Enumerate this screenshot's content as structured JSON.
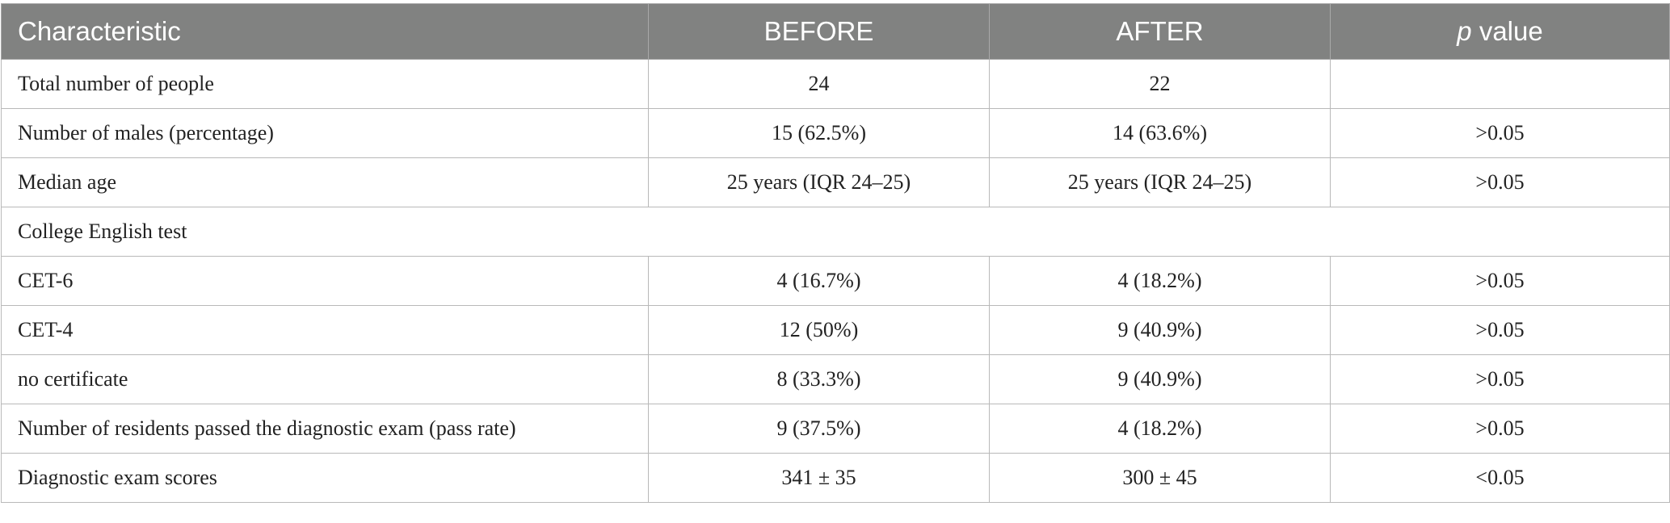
{
  "table": {
    "header": [
      "Characteristic",
      "BEFORE",
      "AFTER",
      {
        "italic": "p",
        "text": "value"
      }
    ],
    "rows": [
      [
        "Total number of people",
        "24",
        "22"
      ],
      [
        "Number of males (percentage)",
        "15 (62.5%)",
        "14 (63.6%)",
        ">0.05"
      ],
      [
        "Median age",
        "25 years (IQR 24–25)",
        "25 years (IQR 24–25)",
        ">0.05"
      ],
      [
        "College English test"
      ],
      [
        "CET-6",
        "4 (16.7%)",
        "4 (18.2%)",
        ">0.05"
      ],
      [
        "CET-4",
        "12 (50%)",
        "9 (40.9%)",
        ">0.05"
      ],
      [
        "no certificate",
        "8 (33.3%)",
        "9 (40.9%)",
        ">0.05"
      ],
      [
        "Number of residents passed the diagnostic exam (pass rate)",
        "9 (37.5%)",
        "4 (18.2%)",
        ">0.05"
      ],
      [
        "Diagnostic exam scores",
        "341 ± 35",
        "300 ± 45",
        "<0.05"
      ]
    ]
  }
}
